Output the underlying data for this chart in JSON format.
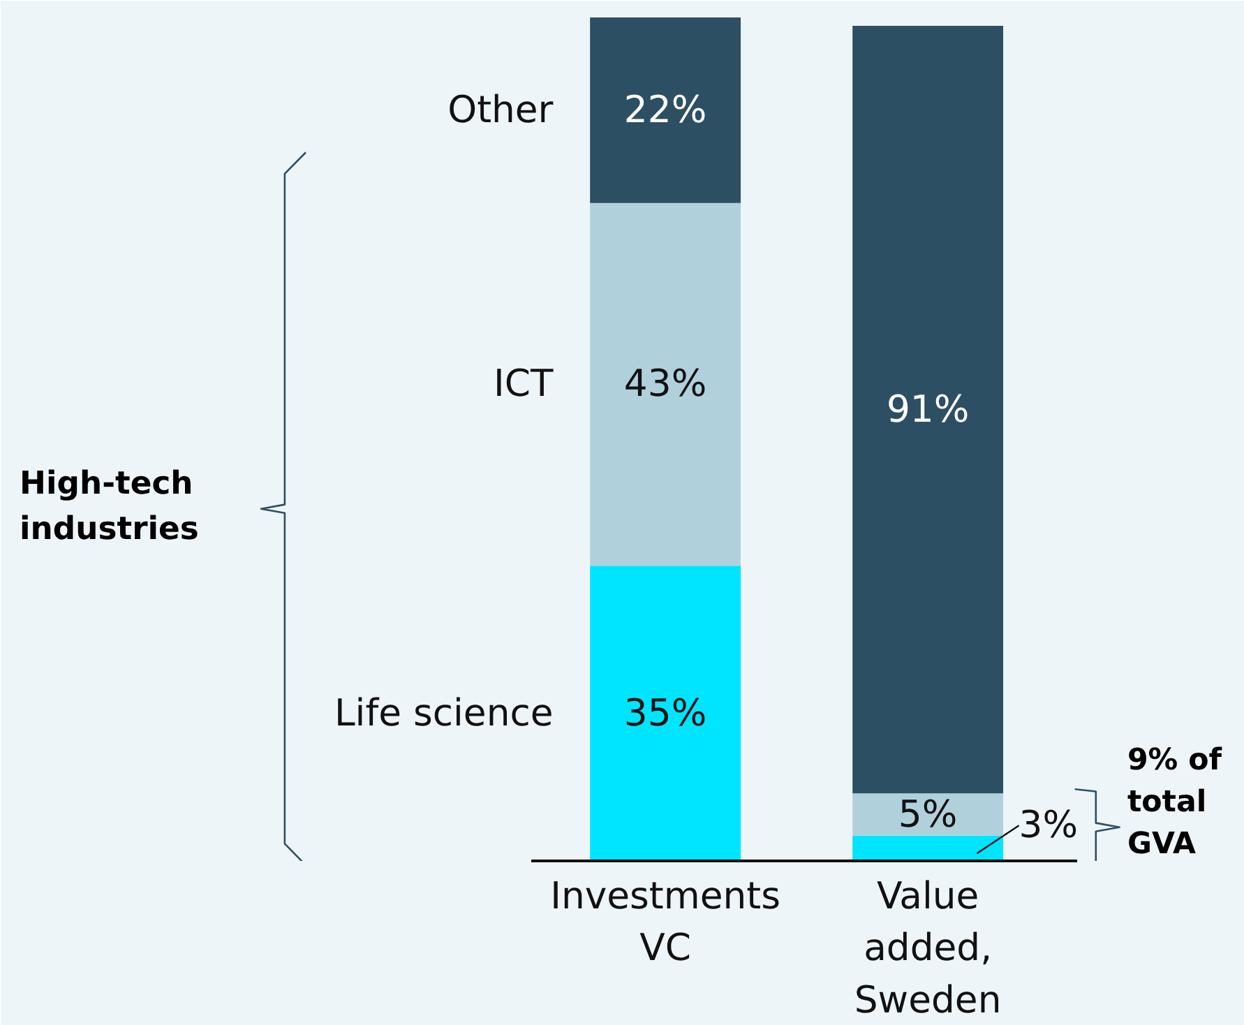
{
  "chart_data": {
    "type": "bar",
    "stacked": true,
    "categories": [
      "Investments\nVC",
      "Value\nadded,\nSweden"
    ],
    "series": [
      {
        "name": "Life science",
        "color": "#00e5ff",
        "values": [
          35,
          3
        ],
        "value_labels": [
          "35%",
          "3%"
        ]
      },
      {
        "name": "ICT",
        "color": "#b0d0dc",
        "values": [
          43,
          5
        ],
        "value_labels": [
          "43%",
          "5%"
        ]
      },
      {
        "name": "Other",
        "color": "#2d4f63",
        "values": [
          22,
          91
        ],
        "value_labels": [
          "22%",
          "91%"
        ]
      }
    ],
    "annotations": [
      "High-tech\nindustries",
      "9% of\ntotal\nGVA"
    ],
    "grid": false
  }
}
